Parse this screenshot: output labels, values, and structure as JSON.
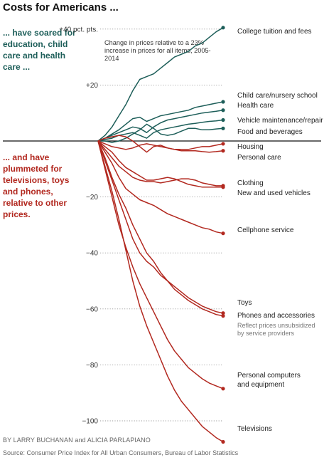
{
  "headline": "Costs for Americans ...",
  "side_notes": {
    "up": "... have soared for education, child care and health care ...",
    "down": "... and have plummeted for televisions, toys and phones, relative to other prices."
  },
  "annotation": "Change in prices relative to a 23% increase in prices for all items, 2005-2014",
  "byline": "BY LARRY BUCHANAN and ALICIA PARLAPIANO",
  "source": "Source: Consumer Price Index for All Urban Consumers, Bureau of Labor Statistics",
  "chart_data": {
    "type": "line",
    "title": "",
    "xlabel": "",
    "ylabel": "",
    "x": [
      2005,
      2014
    ],
    "xlim": [
      2005,
      2014
    ],
    "ylim": [
      -110,
      45
    ],
    "grid": "dotted horizontal",
    "zero_line": true,
    "ticks": [
      {
        "value": 40,
        "label": "+40 pct. pts."
      },
      {
        "value": 20,
        "label": "+20"
      },
      {
        "value": -20,
        "label": "−20"
      },
      {
        "value": -40,
        "label": "−40"
      },
      {
        "value": -60,
        "label": "−60"
      },
      {
        "value": -80,
        "label": "−80"
      },
      {
        "value": -100,
        "label": "−100"
      }
    ],
    "colors": {
      "rising": "#1d5e59",
      "falling": "#b2281f",
      "grid": "#999999",
      "axis": "#111111"
    },
    "series": [
      {
        "name": "College tuition and fees",
        "group": "rising",
        "end": 40.5,
        "path": [
          [
            2005,
            0
          ],
          [
            2005.5,
            2
          ],
          [
            2006,
            5
          ],
          [
            2006.5,
            9
          ],
          [
            2007,
            13
          ],
          [
            2007.5,
            18
          ],
          [
            2008,
            22
          ],
          [
            2008.5,
            23
          ],
          [
            2009,
            24
          ],
          [
            2009.5,
            26
          ],
          [
            2010,
            28
          ],
          [
            2010.5,
            30
          ],
          [
            2011,
            31
          ],
          [
            2011.5,
            32
          ],
          [
            2012,
            34
          ],
          [
            2012.5,
            35
          ],
          [
            2013,
            37
          ],
          [
            2013.5,
            39
          ],
          [
            2014,
            40.5
          ]
        ]
      },
      {
        "name": "Child care/nursery school",
        "group": "rising",
        "end": 14,
        "path": [
          [
            2005,
            0
          ],
          [
            2005.5,
            1
          ],
          [
            2006,
            2.5
          ],
          [
            2006.5,
            4
          ],
          [
            2007,
            6
          ],
          [
            2007.5,
            8
          ],
          [
            2008,
            8.5
          ],
          [
            2008.5,
            7
          ],
          [
            2009,
            8
          ],
          [
            2009.5,
            9
          ],
          [
            2010,
            9.5
          ],
          [
            2010.5,
            10
          ],
          [
            2011,
            10.5
          ],
          [
            2011.5,
            11
          ],
          [
            2012,
            12
          ],
          [
            2012.5,
            12.5
          ],
          [
            2013,
            13
          ],
          [
            2013.5,
            13.5
          ],
          [
            2014,
            14
          ]
        ]
      },
      {
        "name": "Health care",
        "group": "rising",
        "end": 11,
        "path": [
          [
            2005,
            0
          ],
          [
            2005.5,
            1
          ],
          [
            2006,
            2
          ],
          [
            2006.5,
            3
          ],
          [
            2007,
            4
          ],
          [
            2007.5,
            5
          ],
          [
            2008,
            4.5
          ],
          [
            2008.5,
            3
          ],
          [
            2009,
            5
          ],
          [
            2009.5,
            6.5
          ],
          [
            2010,
            7.5
          ],
          [
            2010.5,
            8
          ],
          [
            2011,
            8.5
          ],
          [
            2011.5,
            9
          ],
          [
            2012,
            9.5
          ],
          [
            2012.5,
            10
          ],
          [
            2013,
            10.3
          ],
          [
            2013.5,
            10.6
          ],
          [
            2014,
            11
          ]
        ]
      },
      {
        "name": "Vehicle maintenance/repair",
        "group": "rising",
        "end": 7.5,
        "path": [
          [
            2005,
            0
          ],
          [
            2005.5,
            0.5
          ],
          [
            2006,
            1
          ],
          [
            2006.5,
            2
          ],
          [
            2007,
            2.5
          ],
          [
            2007.5,
            3
          ],
          [
            2008,
            2
          ],
          [
            2008.5,
            1
          ],
          [
            2009,
            3
          ],
          [
            2009.5,
            4
          ],
          [
            2010,
            4.5
          ],
          [
            2010.5,
            5
          ],
          [
            2011,
            5.5
          ],
          [
            2011.5,
            6
          ],
          [
            2012,
            6.3
          ],
          [
            2012.5,
            6.7
          ],
          [
            2013,
            7
          ],
          [
            2013.5,
            7.2
          ],
          [
            2014,
            7.5
          ]
        ]
      },
      {
        "name": "Food and beverages",
        "group": "rising",
        "end": 4.5,
        "path": [
          [
            2005,
            0
          ],
          [
            2005.5,
            0
          ],
          [
            2006,
            -0.5
          ],
          [
            2006.5,
            0
          ],
          [
            2007,
            1
          ],
          [
            2007.5,
            2.5
          ],
          [
            2008,
            4
          ],
          [
            2008.5,
            6
          ],
          [
            2009,
            4.5
          ],
          [
            2009.5,
            2.5
          ],
          [
            2010,
            2
          ],
          [
            2010.5,
            2.5
          ],
          [
            2011,
            3.5
          ],
          [
            2011.5,
            4.5
          ],
          [
            2012,
            4.5
          ],
          [
            2012.5,
            4
          ],
          [
            2013,
            4
          ],
          [
            2013.5,
            4.3
          ],
          [
            2014,
            4.5
          ]
        ]
      },
      {
        "name": "Housing",
        "group": "falling",
        "end": -1,
        "path": [
          [
            2005,
            0
          ],
          [
            2005.5,
            1
          ],
          [
            2006,
            1.5
          ],
          [
            2006.5,
            2
          ],
          [
            2007,
            1.5
          ],
          [
            2007.5,
            0
          ],
          [
            2008,
            -2
          ],
          [
            2008.5,
            -4
          ],
          [
            2009,
            -2
          ],
          [
            2009.5,
            -1.5
          ],
          [
            2010,
            -2.5
          ],
          [
            2010.5,
            -3
          ],
          [
            2011,
            -3
          ],
          [
            2011.5,
            -3
          ],
          [
            2012,
            -2.5
          ],
          [
            2012.5,
            -2
          ],
          [
            2013,
            -2
          ],
          [
            2013.5,
            -1.5
          ],
          [
            2014,
            -1
          ]
        ]
      },
      {
        "name": "Personal care",
        "group": "falling",
        "end": -3.5,
        "path": [
          [
            2005,
            0
          ],
          [
            2005.5,
            -1
          ],
          [
            2006,
            -2
          ],
          [
            2006.5,
            -2.5
          ],
          [
            2007,
            -3
          ],
          [
            2007.5,
            -2.5
          ],
          [
            2008,
            -1.5
          ],
          [
            2008.5,
            -1
          ],
          [
            2009,
            -1.5
          ],
          [
            2009.5,
            -2
          ],
          [
            2010,
            -2.5
          ],
          [
            2010.5,
            -3
          ],
          [
            2011,
            -3.5
          ],
          [
            2011.5,
            -3.5
          ],
          [
            2012,
            -3.5
          ],
          [
            2012.5,
            -3.8
          ],
          [
            2013,
            -4
          ],
          [
            2013.5,
            -3.8
          ],
          [
            2014,
            -3.5
          ]
        ]
      },
      {
        "name": "Clothing",
        "group": "falling",
        "end": -16,
        "path": [
          [
            2005,
            0
          ],
          [
            2005.5,
            -3
          ],
          [
            2006,
            -6
          ],
          [
            2006.5,
            -9
          ],
          [
            2007,
            -11
          ],
          [
            2007.5,
            -13
          ],
          [
            2008,
            -14
          ],
          [
            2008.5,
            -14.5
          ],
          [
            2009,
            -14.5
          ],
          [
            2009.5,
            -15
          ],
          [
            2010,
            -14.5
          ],
          [
            2010.5,
            -14
          ],
          [
            2011,
            -13.5
          ],
          [
            2011.5,
            -13.5
          ],
          [
            2012,
            -14
          ],
          [
            2012.5,
            -15
          ],
          [
            2013,
            -15.5
          ],
          [
            2013.5,
            -16
          ],
          [
            2014,
            -16
          ]
        ]
      },
      {
        "name": "New and used vehicles",
        "group": "falling",
        "end": -16.5,
        "path": [
          [
            2005,
            0
          ],
          [
            2005.5,
            -2
          ],
          [
            2006,
            -4
          ],
          [
            2006.5,
            -7
          ],
          [
            2007,
            -9.5
          ],
          [
            2007.5,
            -11
          ],
          [
            2008,
            -12.5
          ],
          [
            2008.5,
            -14
          ],
          [
            2009,
            -14
          ],
          [
            2009.5,
            -13.5
          ],
          [
            2010,
            -13
          ],
          [
            2010.5,
            -13.5
          ],
          [
            2011,
            -14.5
          ],
          [
            2011.5,
            -15.5
          ],
          [
            2012,
            -16
          ],
          [
            2012.5,
            -16.5
          ],
          [
            2013,
            -16.5
          ],
          [
            2013.5,
            -16.5
          ],
          [
            2014,
            -16.5
          ]
        ]
      },
      {
        "name": "Cellphone service",
        "group": "falling",
        "end": -33,
        "path": [
          [
            2005,
            0
          ],
          [
            2005.5,
            -4
          ],
          [
            2006,
            -8
          ],
          [
            2006.5,
            -13
          ],
          [
            2007,
            -17
          ],
          [
            2007.5,
            -19
          ],
          [
            2008,
            -21
          ],
          [
            2008.5,
            -22
          ],
          [
            2009,
            -23
          ],
          [
            2009.5,
            -24.5
          ],
          [
            2010,
            -26
          ],
          [
            2010.5,
            -27
          ],
          [
            2011,
            -28
          ],
          [
            2011.5,
            -29
          ],
          [
            2012,
            -30
          ],
          [
            2012.5,
            -31
          ],
          [
            2013,
            -31.5
          ],
          [
            2013.5,
            -32.5
          ],
          [
            2014,
            -33
          ]
        ]
      },
      {
        "name": "Toys",
        "group": "falling",
        "end": -61.5,
        "path": [
          [
            2005,
            0
          ],
          [
            2005.5,
            -7
          ],
          [
            2006,
            -14
          ],
          [
            2006.5,
            -21
          ],
          [
            2007,
            -28
          ],
          [
            2007.5,
            -35
          ],
          [
            2008,
            -40
          ],
          [
            2008.5,
            -43
          ],
          [
            2009,
            -45
          ],
          [
            2009.5,
            -48
          ],
          [
            2010,
            -50
          ],
          [
            2010.5,
            -52
          ],
          [
            2011,
            -54
          ],
          [
            2011.5,
            -56
          ],
          [
            2012,
            -57.5
          ],
          [
            2012.5,
            -59
          ],
          [
            2013,
            -60
          ],
          [
            2013.5,
            -61
          ],
          [
            2014,
            -61.5
          ]
        ]
      },
      {
        "name": "Phones and accessories",
        "group": "falling",
        "end": -62.5,
        "note": "Reflect prices unsubsidized by service providers",
        "path": [
          [
            2005,
            0
          ],
          [
            2005.5,
            -6
          ],
          [
            2006,
            -13
          ],
          [
            2006.5,
            -19
          ],
          [
            2007,
            -24
          ],
          [
            2007.5,
            -30
          ],
          [
            2008,
            -35
          ],
          [
            2008.5,
            -40
          ],
          [
            2009,
            -43
          ],
          [
            2009.5,
            -47
          ],
          [
            2010,
            -50
          ],
          [
            2010.5,
            -53
          ],
          [
            2011,
            -55
          ],
          [
            2011.5,
            -57
          ],
          [
            2012,
            -58.5
          ],
          [
            2012.5,
            -60
          ],
          [
            2013,
            -61
          ],
          [
            2013.5,
            -62
          ],
          [
            2014,
            -62.5
          ]
        ]
      },
      {
        "name": "Personal computers and equipment",
        "group": "falling",
        "end": -88.5,
        "path": [
          [
            2005,
            0
          ],
          [
            2005.5,
            -10
          ],
          [
            2006,
            -20
          ],
          [
            2006.5,
            -30
          ],
          [
            2007,
            -38
          ],
          [
            2007.5,
            -45
          ],
          [
            2008,
            -51
          ],
          [
            2008.5,
            -56
          ],
          [
            2009,
            -61
          ],
          [
            2009.5,
            -66
          ],
          [
            2010,
            -71
          ],
          [
            2010.5,
            -75
          ],
          [
            2011,
            -78
          ],
          [
            2011.5,
            -81
          ],
          [
            2012,
            -83
          ],
          [
            2012.5,
            -85
          ],
          [
            2013,
            -86.5
          ],
          [
            2013.5,
            -87.5
          ],
          [
            2014,
            -88.5
          ]
        ]
      },
      {
        "name": "Televisions",
        "group": "falling",
        "end": -107.5,
        "path": [
          [
            2005,
            0
          ],
          [
            2005.5,
            -9
          ],
          [
            2006,
            -18
          ],
          [
            2006.5,
            -28
          ],
          [
            2007,
            -39
          ],
          [
            2007.5,
            -50
          ],
          [
            2008,
            -59
          ],
          [
            2008.5,
            -66
          ],
          [
            2009,
            -72
          ],
          [
            2009.5,
            -78
          ],
          [
            2010,
            -84
          ],
          [
            2010.5,
            -89
          ],
          [
            2011,
            -93
          ],
          [
            2011.5,
            -96
          ],
          [
            2012,
            -99
          ],
          [
            2012.5,
            -102
          ],
          [
            2013,
            -104
          ],
          [
            2013.5,
            -106
          ],
          [
            2014,
            -107.5
          ]
        ]
      }
    ]
  }
}
